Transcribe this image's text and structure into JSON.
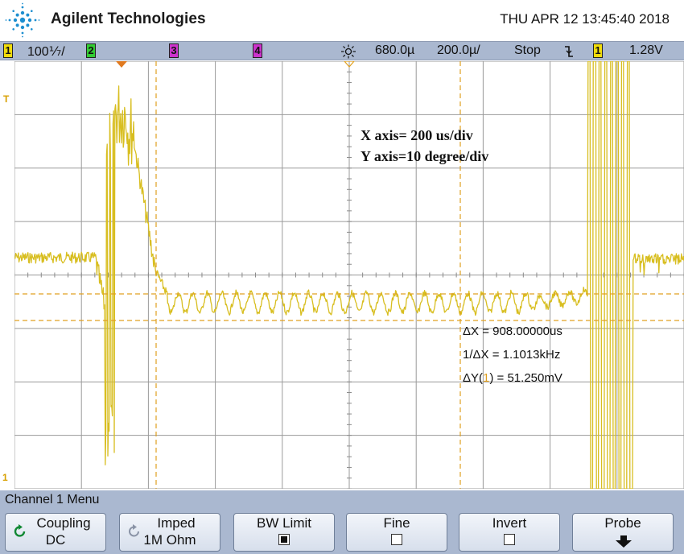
{
  "header": {
    "brand": "Agilent Technologies",
    "datetime": "THU APR 12 13:45:40 2018",
    "logo_icon": "agilent-spark-icon"
  },
  "status_bar": {
    "ch1_num": "1",
    "ch1_scale": "100⅐/",
    "ch2_num": "2",
    "ch3_num": "3",
    "ch4_num": "4",
    "trigger_icon": "sun-icon",
    "time_delay": "680.0µ",
    "time_scale": "200.0µ/",
    "run_state": "Stop",
    "edge_icon": "falling-edge-icon",
    "trig_source": "1",
    "trig_level": "1.28V",
    "colors": {
      "ch1": "#f0dc0a",
      "ch2": "#33cc33",
      "ch3": "#cc33cc",
      "ch4": "#cc33cc"
    }
  },
  "screen": {
    "trace_color": "#d8be20",
    "cursor_color": "#e0a020",
    "annotation_line1": "X axis= 200 us/div",
    "annotation_line2": "Y axis=10 degree/div",
    "measurements": {
      "dx": "ΔX = 908.00000us",
      "inv_dx": "1/ΔX = 1.1013kHz",
      "dy_prefix": "ΔY(",
      "dy_channel": "1",
      "dy_suffix": ") = 51.250mV"
    },
    "marker_trigger": "T",
    "marker_ground": "1"
  },
  "menu": {
    "title": "Channel 1  Menu",
    "softkeys": [
      {
        "line1": "Coupling",
        "line2": "DC",
        "icon": "cycle-arrow-icon"
      },
      {
        "line1": "Imped",
        "line2": "1M Ohm",
        "icon": "cycle-arrow-icon"
      },
      {
        "line1": "BW Limit",
        "checked": true
      },
      {
        "line1": "Fine",
        "checked": false
      },
      {
        "line1": "Invert",
        "checked": false
      },
      {
        "line1": "Probe",
        "icon": "down-arrow-icon"
      }
    ]
  }
}
